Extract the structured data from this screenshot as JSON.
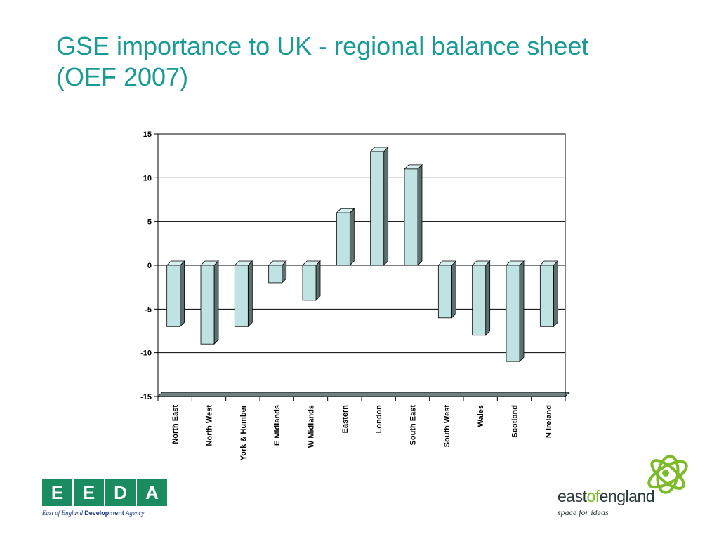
{
  "slide": {
    "title_line1": "GSE importance to UK - regional balance sheet",
    "title_line2": "(OEF 2007)"
  },
  "colors": {
    "title": "#1a9a95",
    "bar_front": "#bfe2e2",
    "bar_top": "#d6eeee",
    "bar_side": "#5c7070",
    "floor": "#6e8080"
  },
  "chart_data": {
    "type": "bar",
    "categories": [
      "North East",
      "North West",
      "York & Humber",
      "E Midlands",
      "W Midlands",
      "Eastern",
      "London",
      "South East",
      "South West",
      "Wales",
      "Scotland",
      "N Ireland"
    ],
    "values": [
      -7,
      -9,
      -7,
      -2,
      -4,
      6,
      13,
      11,
      -6,
      -8,
      -11,
      -7
    ],
    "yticks": [
      15,
      10,
      5,
      0,
      -5,
      -10,
      -15
    ],
    "ylim": [
      -15,
      15
    ],
    "grid": true,
    "three_d": true
  },
  "logos": {
    "eeda": {
      "letters": [
        "E",
        "E",
        "D",
        "A"
      ],
      "tagline_pre": "East of England ",
      "tagline_bold": "Development",
      "tagline_post": " Agency"
    },
    "east_of_england": {
      "word_east": "east",
      "word_of": "of",
      "word_england": "england",
      "tagline": "space for ideas",
      "icon": "green-swirl-icon"
    }
  }
}
